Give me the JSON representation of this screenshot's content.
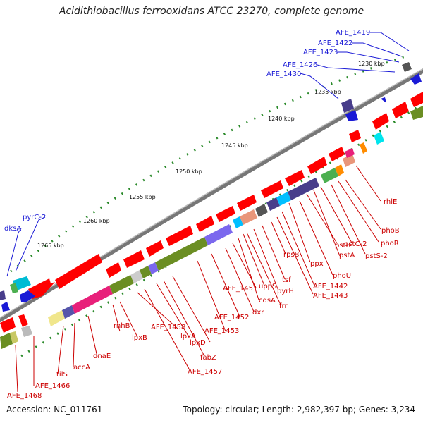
{
  "header": {
    "title": "Acidithiobacillus ferrooxidans ATCC 23270, complete genome"
  },
  "footer": {
    "accession": "Accession: NC_011761",
    "summary": "Topology: circular; Length: 2,982,397 bp; Genes: 3,234"
  },
  "scale": {
    "ticks": [
      "1230 kbp",
      "1235 kbp",
      "1240 kbp",
      "1245 kbp",
      "1250 kbp",
      "1255 kbp",
      "1260 kbp",
      "1265 kbp"
    ]
  },
  "colors": {
    "label_blue": "#1a1ad6",
    "label_red": "#cc0000",
    "gene_red": "#ff0000",
    "backbone": "#777777",
    "tick_green": "#2a8a2a"
  },
  "labels": {
    "blue": [
      "AFE_1419",
      "AFE_1422",
      "AFE_1423",
      "AFE_1426",
      "AFE_1430",
      "pyrC-2",
      "dksA"
    ],
    "red": [
      "rhlE",
      "phoB",
      "phoR",
      "pstS-2",
      "pstC-2",
      "pstA",
      "pstB",
      "phoU",
      "ppx",
      "AFE_1442",
      "AFE_1443",
      "rpsB",
      "tsf",
      "pyrH",
      "frr",
      "uppS",
      "cdsA",
      "AFE_1451",
      "dxr",
      "AFE_1452",
      "AFE_1453",
      "lpxD",
      "fabZ",
      "lpxA",
      "AFE_1457",
      "AFE_1458",
      "lpxB",
      "rnhB",
      "dnaE",
      "accA",
      "tilS",
      "AFE_1466",
      "AFE_1468"
    ]
  }
}
